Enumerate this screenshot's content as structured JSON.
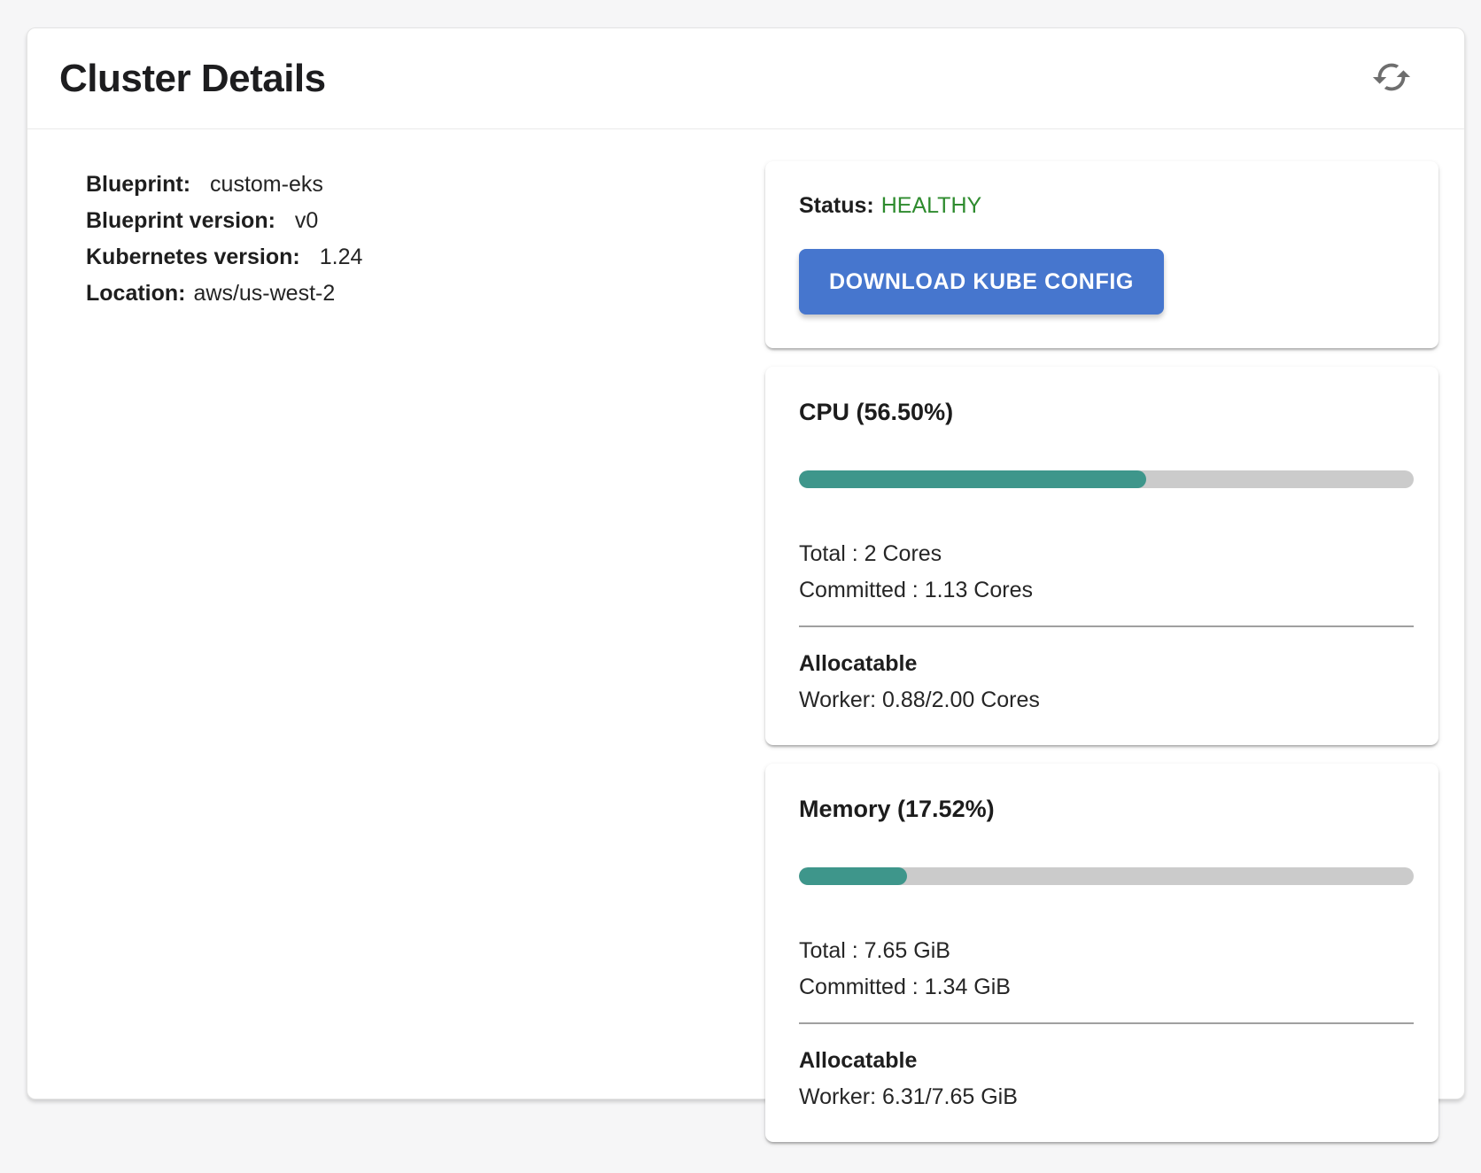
{
  "header": {
    "title": "Cluster Details"
  },
  "details": {
    "rows": [
      {
        "label": "Blueprint:",
        "value": "custom-eks"
      },
      {
        "label": "Blueprint version:",
        "value": "v0"
      },
      {
        "label": "Kubernetes version:",
        "value": "1.24"
      },
      {
        "label": "Location:",
        "value": "aws/us-west-2"
      }
    ]
  },
  "status": {
    "label": "Status:",
    "value": "HEALTHY",
    "button_label": "DOWNLOAD KUBE CONFIG"
  },
  "resources": [
    {
      "title": "CPU (56.50%)",
      "percent": 56.5,
      "total": "Total : 2 Cores",
      "committed": "Committed : 1.13 Cores",
      "allocatable_label": "Allocatable",
      "worker": "Worker: 0.88/2.00 Cores"
    },
    {
      "title": "Memory (17.52%)",
      "percent": 17.52,
      "total": "Total : 7.65 GiB",
      "committed": "Committed : 1.34 GiB",
      "allocatable_label": "Allocatable",
      "worker": "Worker: 6.31/7.65 GiB"
    }
  ],
  "colors": {
    "healthy_green": "#2e8b2e",
    "button_blue": "#4676ce",
    "progress_fill_teal": "#3e968b",
    "progress_track_gray": "#cbcbcb",
    "page_background": "#f6f6f7"
  }
}
